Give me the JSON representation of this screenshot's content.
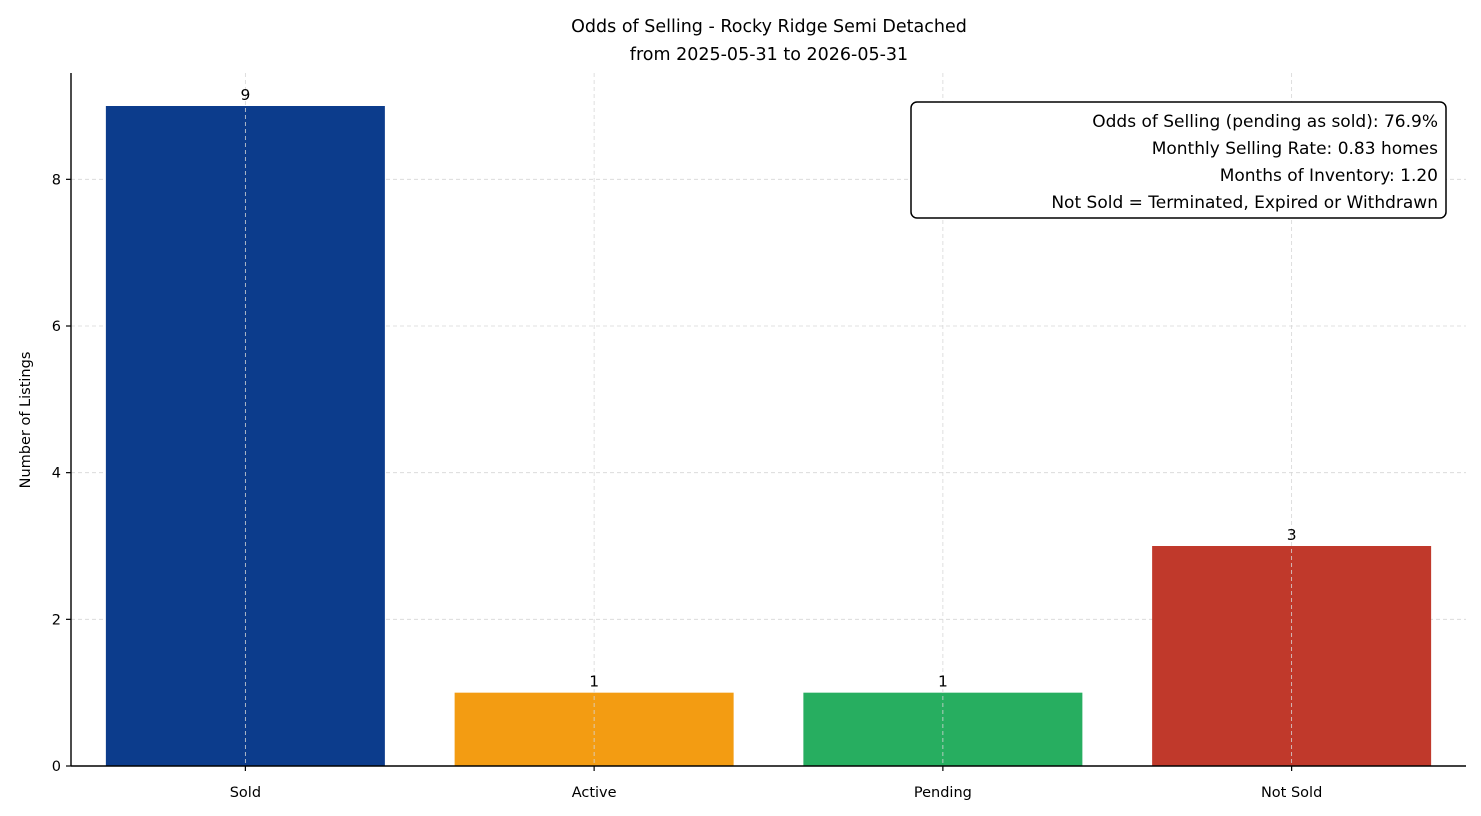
{
  "chart_data": {
    "type": "bar",
    "title": "Odds of Selling - Rocky Ridge Semi Detached",
    "subtitle": "from 2025-05-31 to 2026-05-31",
    "xlabel": "",
    "ylabel": "Number of Listings",
    "categories": [
      "Sold",
      "Active",
      "Pending",
      "Not Sold"
    ],
    "values": [
      9,
      1,
      1,
      3
    ],
    "data_labels": [
      "9",
      "1",
      "1",
      "3"
    ],
    "colors": [
      "#0c3c8c",
      "#f39c12",
      "#27ae60",
      "#c0392b"
    ],
    "ylim": [
      0,
      9.45
    ],
    "yticks": [
      0,
      2,
      4,
      6,
      8
    ],
    "ytick_labels": [
      "0",
      "2",
      "4",
      "6",
      "8"
    ],
    "grid": true,
    "annotation": {
      "placement": "top-right",
      "lines": [
        "Odds of Selling (pending as sold): 76.9%",
        "Monthly Selling Rate: 0.83 homes",
        "Months of Inventory: 1.20",
        "Not Sold = Terminated, Expired or Withdrawn"
      ]
    }
  }
}
